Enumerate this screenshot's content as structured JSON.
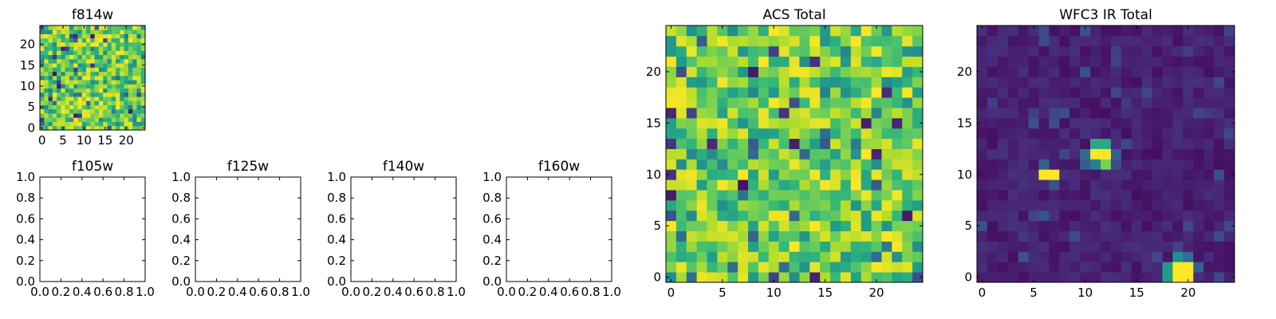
{
  "chart_data": [
    {
      "id": "f814w",
      "type": "heatmap",
      "title": "f814w",
      "grid_size": [
        25,
        25
      ],
      "cmap": "viridis",
      "vmin": 0,
      "vmax": 1,
      "seed": 814,
      "pattern": "noise-high",
      "xlim": [
        -0.5,
        24.5
      ],
      "ylim": [
        -0.5,
        24.5
      ],
      "xticks": [
        0,
        5,
        10,
        15,
        20
      ],
      "yticks": [
        0,
        5,
        10,
        15,
        20
      ],
      "xlabel": "",
      "ylabel": ""
    },
    {
      "id": "f105w",
      "type": "empty",
      "title": "f105w",
      "xlim": [
        0,
        1
      ],
      "ylim": [
        0,
        1
      ],
      "xticks": [
        "0.0",
        "0.2",
        "0.4",
        "0.6",
        "0.8",
        "1.0"
      ],
      "yticks": [
        "0.0",
        "0.2",
        "0.4",
        "0.6",
        "0.8",
        "1.0"
      ]
    },
    {
      "id": "f125w",
      "type": "empty",
      "title": "f125w",
      "xlim": [
        0,
        1
      ],
      "ylim": [
        0,
        1
      ],
      "xticks": [
        "0.0",
        "0.2",
        "0.4",
        "0.6",
        "0.8",
        "1.0"
      ],
      "yticks": [
        "0.0",
        "0.2",
        "0.4",
        "0.6",
        "0.8",
        "1.0"
      ]
    },
    {
      "id": "f140w",
      "type": "empty",
      "title": "f140w",
      "xlim": [
        0,
        1
      ],
      "ylim": [
        0,
        1
      ],
      "xticks": [
        "0.0",
        "0.2",
        "0.4",
        "0.6",
        "0.8",
        "1.0"
      ],
      "yticks": [
        "0.0",
        "0.2",
        "0.4",
        "0.6",
        "0.8",
        "1.0"
      ]
    },
    {
      "id": "f160w",
      "type": "empty",
      "title": "f160w",
      "xlim": [
        0,
        1
      ],
      "ylim": [
        0,
        1
      ],
      "xticks": [
        "0.0",
        "0.2",
        "0.4",
        "0.6",
        "0.8",
        "1.0"
      ],
      "yticks": [
        "0.0",
        "0.2",
        "0.4",
        "0.6",
        "0.8",
        "1.0"
      ]
    },
    {
      "id": "acs-total",
      "type": "heatmap",
      "title": "ACS Total",
      "grid_size": [
        25,
        25
      ],
      "cmap": "viridis",
      "vmin": 0,
      "vmax": 1,
      "seed": 2024,
      "pattern": "noise-high",
      "xlim": [
        -0.5,
        24.5
      ],
      "ylim": [
        -0.5,
        24.5
      ],
      "xticks": [
        0,
        5,
        10,
        15,
        20
      ],
      "yticks": [
        0,
        5,
        10,
        15,
        20
      ],
      "xlabel": "",
      "ylabel": ""
    },
    {
      "id": "wfc3-ir-total",
      "type": "heatmap",
      "title": "WFC3 IR Total",
      "grid_size": [
        25,
        25
      ],
      "cmap": "viridis",
      "vmin": 0,
      "vmax": 1,
      "seed": 3160,
      "pattern": "background-low",
      "bright_pixels": [
        {
          "x": 6,
          "y": 10,
          "v": 1.0
        },
        {
          "x": 7,
          "y": 10,
          "v": 1.0
        },
        {
          "x": 11,
          "y": 12,
          "v": 1.0
        },
        {
          "x": 12,
          "y": 12,
          "v": 1.0
        },
        {
          "x": 11,
          "y": 13,
          "v": 0.6
        },
        {
          "x": 12,
          "y": 13,
          "v": 0.6
        },
        {
          "x": 10,
          "y": 12,
          "v": 0.35
        },
        {
          "x": 10,
          "y": 11,
          "v": 0.3
        },
        {
          "x": 11,
          "y": 11,
          "v": 0.45
        },
        {
          "x": 12,
          "y": 11,
          "v": 0.8
        },
        {
          "x": 19,
          "y": 0,
          "v": 1.0
        },
        {
          "x": 20,
          "y": 0,
          "v": 1.0
        },
        {
          "x": 19,
          "y": 1,
          "v": 1.0
        },
        {
          "x": 20,
          "y": 1,
          "v": 1.0
        },
        {
          "x": 18,
          "y": 0,
          "v": 0.55
        },
        {
          "x": 18,
          "y": 1,
          "v": 0.55
        },
        {
          "x": 19,
          "y": 2,
          "v": 0.5
        },
        {
          "x": 20,
          "y": 2,
          "v": 0.35
        },
        {
          "x": 21,
          "y": 1,
          "v": 0.3
        },
        {
          "x": 6,
          "y": 11,
          "v": 0.3
        },
        {
          "x": 7,
          "y": 9,
          "v": 0.25
        },
        {
          "x": 13,
          "y": 12,
          "v": 0.3
        }
      ],
      "xlim": [
        -0.5,
        24.5
      ],
      "ylim": [
        -0.5,
        24.5
      ],
      "xticks": [
        0,
        5,
        10,
        15,
        20
      ],
      "yticks": [
        0,
        5,
        10,
        15,
        20
      ],
      "xlabel": "",
      "ylabel": ""
    }
  ]
}
